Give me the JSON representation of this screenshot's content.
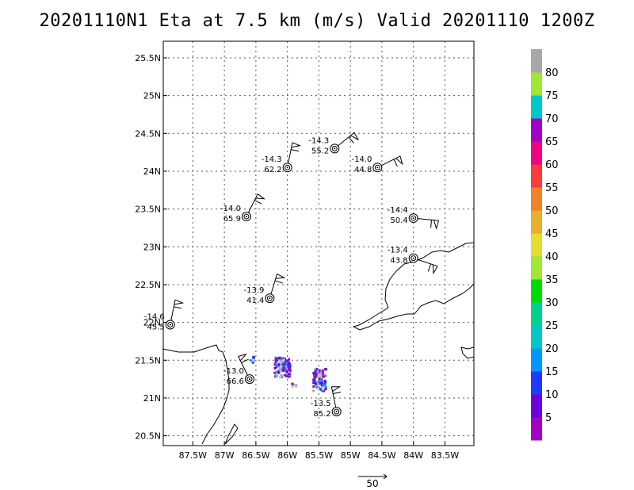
{
  "title": "20201110N1 Eta at 7.5 km (m/s) Valid 20201110  1200Z",
  "lat_ticks": [
    {
      "label": "25.5N",
      "lat": 25.5
    },
    {
      "label": "25N",
      "lat": 25.0
    },
    {
      "label": "24.5N",
      "lat": 24.5
    },
    {
      "label": "24N",
      "lat": 24.0
    },
    {
      "label": "23.5N",
      "lat": 23.5
    },
    {
      "label": "23N",
      "lat": 23.0
    },
    {
      "label": "22.5N",
      "lat": 22.5
    },
    {
      "label": "22N",
      "lat": 22.0
    },
    {
      "label": "21.5N",
      "lat": 21.5
    },
    {
      "label": "21N",
      "lat": 21.0
    },
    {
      "label": "20.5N",
      "lat": 20.5
    }
  ],
  "lon_ticks": [
    {
      "label": "87.5W",
      "lon": -87.5
    },
    {
      "label": "87W",
      "lon": -87.0
    },
    {
      "label": "86.5W",
      "lon": -86.5
    },
    {
      "label": "86W",
      "lon": -86.0
    },
    {
      "label": "85.5W",
      "lon": -85.5
    },
    {
      "label": "85W",
      "lon": -85.0
    },
    {
      "label": "84.5W",
      "lon": -84.5
    },
    {
      "label": "84W",
      "lon": -84.0
    },
    {
      "label": "83.5W",
      "lon": -83.5
    }
  ],
  "stations": [
    {
      "temp": "-14.3",
      "speed": "55.2",
      "lon": -85.25,
      "lat": 24.3
    },
    {
      "temp": "-14.3",
      "speed": "62.2",
      "lon": -86.0,
      "lat": 24.05
    },
    {
      "temp": "-14.0",
      "speed": "44.8",
      "lon": -84.57,
      "lat": 24.05
    },
    {
      "temp": "-14.0",
      "speed": "65.9",
      "lon": -86.65,
      "lat": 23.4
    },
    {
      "temp": "-14.4",
      "speed": "50.4",
      "lon": -84.0,
      "lat": 23.38
    },
    {
      "temp": "-13.4",
      "speed": "43.8",
      "lon": -84.0,
      "lat": 22.85
    },
    {
      "temp": "-13.9",
      "speed": "41.4",
      "lon": -86.28,
      "lat": 22.32
    },
    {
      "temp": "-13.0",
      "speed": "66.6",
      "lon": -86.6,
      "lat": 21.25
    },
    {
      "temp": "-13.5",
      "speed": "85.2",
      "lon": -85.22,
      "lat": 20.82
    },
    {
      "temp": "-14.6",
      "speed": "45.5",
      "lon": -87.86,
      "lat": 21.97
    }
  ],
  "colorbar": {
    "labels": [
      "5",
      "10",
      "15",
      "20",
      "25",
      "30",
      "35",
      "40",
      "45",
      "50",
      "55",
      "60",
      "65",
      "70",
      "75",
      "80"
    ],
    "colors": [
      "#a000c8",
      "#6e00dc",
      "#1e3cff",
      "#0096ff",
      "#00c8c8",
      "#00d28c",
      "#00dc00",
      "#a0e632",
      "#e6dc32",
      "#e6af2d",
      "#f08228",
      "#fa3c3c",
      "#f00082",
      "#a000c8",
      "#00c8c8",
      "#a0e632",
      "#a8a8a8"
    ]
  },
  "reference_vector": {
    "label": "50"
  },
  "colors": {
    "coast": "#000000",
    "grid": "#555555"
  }
}
